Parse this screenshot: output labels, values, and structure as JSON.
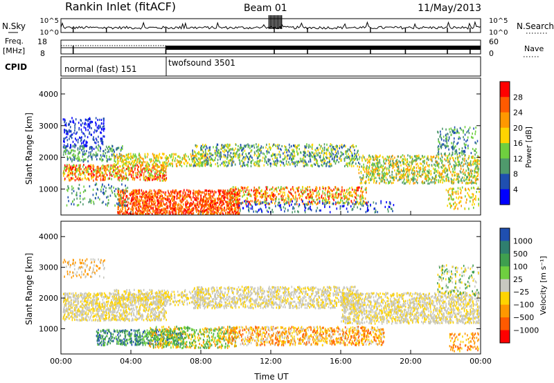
{
  "header": {
    "station": "Rankin Inlet (fitACF)",
    "beam": "Beam 01",
    "date": "11/May/2013"
  },
  "chart_data": [
    {
      "type": "line",
      "panel": "noise",
      "left_label": "N.Sky",
      "right_label": "N.Search",
      "left_ticks": [
        "10^5",
        "10^0"
      ],
      "right_ticks": [
        "10^5",
        "10^0"
      ],
      "scale": "log"
    },
    {
      "type": "line",
      "panel": "frequency",
      "left_label_1": "Freq.",
      "left_label_2": "[MHz]",
      "right_label": "Nave",
      "left_ticks": [
        "18",
        "8"
      ],
      "right_ticks": [
        "60",
        "0"
      ]
    },
    {
      "type": "table",
      "panel": "cpid",
      "label": "CPID",
      "segments": [
        {
          "start": "00:00",
          "end": "06:00",
          "label": "normal (fast) 151"
        },
        {
          "start": "06:00",
          "end": "24:00",
          "label": "twofsound 3501"
        }
      ]
    },
    {
      "type": "heatmap",
      "panel": "power",
      "ylabel": "Slant Range [km]",
      "yticks": [
        1000,
        2000,
        3000,
        4000
      ],
      "ylim": [
        180,
        4500
      ],
      "xlim": [
        "00:00",
        "24:00"
      ],
      "colorbar": {
        "label": "Power [dB]",
        "ticks": [
          "4",
          "8",
          "12",
          "16",
          "20",
          "24",
          "28"
        ],
        "colors": [
          "#0000ff",
          "#1f4fb0",
          "#4f9a6c",
          "#6fcf3f",
          "#ffd400",
          "#ff9800",
          "#ff5a00",
          "#ff0000"
        ]
      }
    },
    {
      "type": "heatmap",
      "panel": "velocity",
      "ylabel": "Slant Range [km]",
      "yticks": [
        1000,
        2000,
        3000,
        4000
      ],
      "ylim": [
        180,
        4500
      ],
      "xlim": [
        "00:00",
        "24:00"
      ],
      "xticks": [
        "00:00",
        "04:00",
        "08:00",
        "12:00",
        "16:00",
        "20:00",
        "00:00"
      ],
      "xlabel": "Time UT",
      "colorbar": {
        "label": "Velocity [m s⁻¹]",
        "ticks": [
          "1000",
          "500",
          "100",
          "25",
          "−25",
          "−100",
          "−500",
          "−1000"
        ],
        "colors": [
          "#1f4fb0",
          "#2f7f6f",
          "#3f9f4f",
          "#6fcf3f",
          "#c8c8c0",
          "#ffd400",
          "#ff9800",
          "#ff5a00",
          "#ff0000"
        ]
      }
    }
  ]
}
